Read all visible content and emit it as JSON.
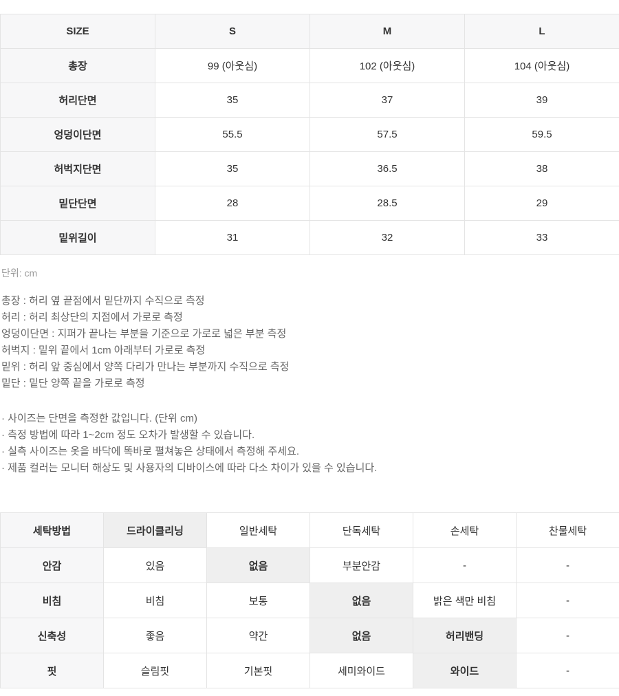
{
  "colors": {
    "label_bg": "#f7f7f8",
    "highlight_bg": "#efefef",
    "border": "#e4e4e4",
    "text": "#333333",
    "note_text": "#666666",
    "muted_text": "#9a9a9a"
  },
  "size_table": {
    "header": [
      "SIZE",
      "S",
      "M",
      "L"
    ],
    "rows": [
      {
        "label": "총장",
        "values": [
          "99 (아웃심)",
          "102 (아웃심)",
          "104 (아웃심)"
        ]
      },
      {
        "label": "허리단면",
        "values": [
          "35",
          "37",
          "39"
        ]
      },
      {
        "label": "엉덩이단면",
        "values": [
          "55.5",
          "57.5",
          "59.5"
        ]
      },
      {
        "label": "허벅지단면",
        "values": [
          "35",
          "36.5",
          "38"
        ]
      },
      {
        "label": "밑단단면",
        "values": [
          "28",
          "28.5",
          "29"
        ]
      },
      {
        "label": "밑위길이",
        "values": [
          "31",
          "32",
          "33"
        ]
      }
    ],
    "unit_label": "단위: cm"
  },
  "measure_notes": [
    "총장 : 허리 옆 끝점에서 밑단까지 수직으로 측정",
    "허리 : 허리 최상단의 지점에서 가로로 측정",
    "엉덩이단면 : 지퍼가 끝나는 부분을 기준으로 가로로 넓은 부분 측정",
    "허벅지 : 밑위 끝에서 1cm 아래부터 가로로 측정",
    "밑위 : 허리 앞 중심에서 양쪽 다리가 만나는 부분까지 수직으로 측정",
    "밑단 : 밑단 양쪽 끝을 가로로 측정"
  ],
  "bullet_notes": [
    "· 사이즈는 단면을 측정한 값입니다. (단위 cm)",
    "· 측정 방법에 따라 1~2cm 정도 오차가 발생할 수 있습니다.",
    "· 실측 사이즈는 옷을 바닥에 똑바로 펼쳐놓은 상태에서 측정해 주세요.",
    "· 제품 컬러는 모니터 해상도 및 사용자의 디바이스에 따라 다소 차이가 있을 수 있습니다."
  ],
  "care_table": {
    "rows": [
      {
        "label": "세탁방법",
        "cells": [
          "드라이클리닝",
          "일반세탁",
          "단독세탁",
          "손세탁",
          "찬물세탁"
        ],
        "selected": [
          0
        ]
      },
      {
        "label": "안감",
        "cells": [
          "있음",
          "없음",
          "부분안감",
          "-",
          "-"
        ],
        "selected": [
          1
        ]
      },
      {
        "label": "비침",
        "cells": [
          "비침",
          "보통",
          "없음",
          "밝은 색만 비침",
          "-"
        ],
        "selected": [
          2
        ]
      },
      {
        "label": "신축성",
        "cells": [
          "좋음",
          "약간",
          "없음",
          "허리밴딩",
          "-"
        ],
        "selected": [
          2,
          3
        ]
      },
      {
        "label": "핏",
        "cells": [
          "슬림핏",
          "기본핏",
          "세미와이드",
          "와이드",
          "-"
        ],
        "selected": [
          3
        ]
      }
    ]
  }
}
